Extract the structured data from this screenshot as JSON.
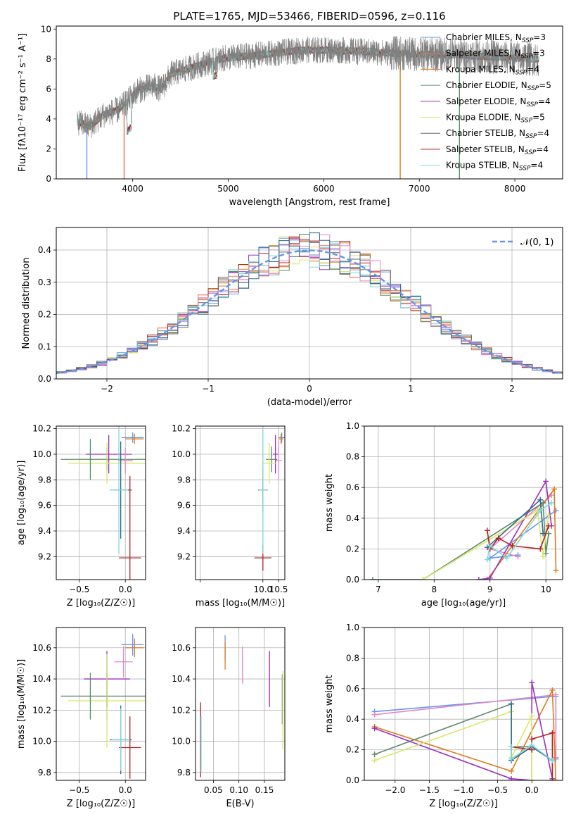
{
  "figure": {
    "title": "PLATE=1765, MJD=53466, FIBERID=0596, z=0.116"
  },
  "colors": {
    "palette": [
      "#6495ed",
      "#ee6a50",
      "#dd7a1f",
      "#5e8b6a",
      "#9b30c0",
      "#d8e86a",
      "#666666",
      "#b22222",
      "#7fd8d8",
      "#e487c8",
      "#2e6b8a",
      "#4a8c8a"
    ]
  },
  "legend_models": [
    {
      "label": "Chabrier MILES, N",
      "sub": "SSP",
      "suffix": "=3",
      "color": "#6495ed"
    },
    {
      "label": "Salpeter MILES, N",
      "sub": "SSP",
      "suffix": "=3",
      "color": "#ee6a50"
    },
    {
      "label": "Kroupa MILES, N",
      "sub": "SSP",
      "suffix": "=4",
      "color": "#dd7a1f"
    },
    {
      "label": "Chabrier ELODIE, N",
      "sub": "SSP",
      "suffix": "=5",
      "color": "#5e8b6a"
    },
    {
      "label": "Salpeter ELODIE, N",
      "sub": "SSP",
      "suffix": "=4",
      "color": "#9b30c0"
    },
    {
      "label": "Kroupa ELODIE, N",
      "sub": "SSP",
      "suffix": "=5",
      "color": "#d8e86a"
    },
    {
      "label": "Chabrier STELIB, N",
      "sub": "SSP",
      "suffix": "=4",
      "color": "#666666"
    },
    {
      "label": "Salpeter STELIB, N",
      "sub": "SSP",
      "suffix": "=4",
      "color": "#b22222"
    },
    {
      "label": "Kroupa STELIB, N",
      "sub": "SSP",
      "suffix": "=4",
      "color": "#7fd8d8"
    }
  ],
  "chart_data": [
    {
      "id": "spectrum",
      "type": "line",
      "xlabel": "wavelength [Angstrom, rest frame]",
      "ylabel": "Flux [fλ10⁻¹⁷ erg cm⁻² s⁻¹ A⁻¹]",
      "xlim": [
        3200,
        8500
      ],
      "ylim": [
        0,
        10.2
      ],
      "xticks": [
        4000,
        5000,
        6000,
        7000,
        8000
      ],
      "yticks": [
        0,
        2,
        4,
        6,
        8,
        10
      ],
      "grid": false,
      "legend_position": "right",
      "continuum": [
        [
          3420,
          3.8
        ],
        [
          3550,
          3.5
        ],
        [
          3700,
          4.3
        ],
        [
          3850,
          4.6
        ],
        [
          3950,
          5.2
        ],
        [
          4050,
          5.9
        ],
        [
          4200,
          6.2
        ],
        [
          4300,
          6.0
        ],
        [
          4400,
          7.0
        ],
        [
          4600,
          7.4
        ],
        [
          4800,
          7.8
        ],
        [
          5000,
          8.1
        ],
        [
          5200,
          8.2
        ],
        [
          5500,
          8.4
        ],
        [
          5800,
          8.6
        ],
        [
          6100,
          8.6
        ],
        [
          6400,
          8.5
        ],
        [
          6700,
          8.4
        ],
        [
          7000,
          8.3
        ],
        [
          7300,
          8.3
        ],
        [
          7600,
          8.2
        ],
        [
          7900,
          8.1
        ],
        [
          8250,
          8.0
        ]
      ],
      "noise_amplitude": 0.9,
      "model_dropouts": [
        [
          3520,
          0
        ],
        [
          3910,
          0
        ],
        [
          6800,
          0
        ],
        [
          7420,
          0
        ]
      ]
    },
    {
      "id": "residuals",
      "type": "step",
      "xlabel": "(data-model)/error",
      "ylabel": "Normed distribution",
      "xlim": [
        -2.5,
        2.5
      ],
      "ylim": [
        0,
        0.47
      ],
      "xticks": [
        -2,
        -1,
        0,
        1,
        2
      ],
      "xtick_labels": [
        "−2",
        "−1",
        "0",
        "1",
        "2"
      ],
      "yticks": [
        0.0,
        0.1,
        0.2,
        0.3,
        0.4
      ],
      "ytick_labels": [
        "0.0",
        "0.1",
        "0.2",
        "0.3",
        "0.4"
      ],
      "grid": true,
      "bin_width": 0.1,
      "reference_curve": {
        "label": "𝒩(0, 1)",
        "color": "#6495ed",
        "mean": 0,
        "sigma": 1
      },
      "legend_position": "top-right"
    },
    {
      "id": "age-vs-Z",
      "type": "errorbar",
      "xlabel": "Z [log₁₀(Z/Z☉)]",
      "ylabel": "age  [log₁₀(age/yr)]",
      "xlim": [
        -0.75,
        0.22
      ],
      "ylim": [
        9.02,
        10.22
      ],
      "xticks": [
        -0.5,
        0.0
      ],
      "xtick_labels": [
        "−0.5",
        "0.0"
      ],
      "yticks": [
        9.2,
        9.4,
        9.6,
        9.8,
        10.0,
        10.2
      ],
      "ytick_labels": [
        "9.2",
        "9.4",
        "9.6",
        "9.8",
        "10.0",
        "10.2"
      ],
      "grid": true,
      "points": [
        {
          "x": 0.08,
          "y": 10.13,
          "xerr": 0.12,
          "yerr": 0.04,
          "color": "#6495ed"
        },
        {
          "x": 0.1,
          "y": 10.12,
          "xerr": 0.1,
          "yerr": 0.04,
          "color": "#dd7a1f"
        },
        {
          "x": -0.2,
          "y": 9.96,
          "xerr": 0.5,
          "yerr": 0.09,
          "color": "#5e8b6a"
        },
        {
          "x": -0.18,
          "y": 10.0,
          "xerr": 0.25,
          "yerr": 0.15,
          "color": "#9b30c0"
        },
        {
          "x": -0.2,
          "y": 9.93,
          "xerr": 0.42,
          "yerr": 0.16,
          "color": "#d8e86a"
        },
        {
          "x": 0.0,
          "y": 9.95,
          "xerr": 0.08,
          "yerr": 0.1,
          "color": "#e487c8"
        },
        {
          "x": -0.05,
          "y": 9.72,
          "xerr": 0.12,
          "yerr": 0.38,
          "color": "#2e6b8a"
        },
        {
          "x": 0.05,
          "y": 9.19,
          "xerr": 0.12,
          "yerr": 0.64,
          "color": "#b22222"
        },
        {
          "x": -0.07,
          "y": 9.72,
          "xerr": 0.1,
          "yerr": 0.5,
          "color": "#7fd8d8"
        },
        {
          "x": -0.38,
          "y": 9.96,
          "xerr": 0.01,
          "yerr": 0.16,
          "color": "#5e8b6a"
        }
      ]
    },
    {
      "id": "age-vs-mass",
      "type": "errorbar",
      "xlabel": "mass [log₁₀(M/M☉)]",
      "ylabel": "",
      "xlim": [
        7.85,
        10.7
      ],
      "ylim": [
        9.02,
        10.22
      ],
      "xticks": [
        8.0,
        10.0,
        10.5
      ],
      "xtick_labels": [
        "",
        "10.0",
        "10.5"
      ],
      "yticks": [
        9.2,
        9.4,
        9.6,
        9.8,
        10.0,
        10.2
      ],
      "ytick_labels": [
        "9.2",
        "9.4",
        "9.6",
        "9.8",
        "10.0",
        "10.2"
      ],
      "grid": true,
      "points": [
        {
          "x": 10.6,
          "y": 10.13,
          "xerr": 0.1,
          "yerr": 0.04,
          "color": "#6495ed"
        },
        {
          "x": 10.58,
          "y": 10.12,
          "xerr": 0.08,
          "yerr": 0.04,
          "color": "#dd7a1f"
        },
        {
          "x": 10.28,
          "y": 9.96,
          "xerr": 0.18,
          "yerr": 0.1,
          "color": "#5e8b6a"
        },
        {
          "x": 10.4,
          "y": 10.0,
          "xerr": 0.08,
          "yerr": 0.15,
          "color": "#9b30c0"
        },
        {
          "x": 10.2,
          "y": 9.93,
          "xerr": 0.2,
          "yerr": 0.16,
          "color": "#d8e86a"
        },
        {
          "x": 10.5,
          "y": 9.95,
          "xerr": 0.1,
          "yerr": 0.15,
          "color": "#e487c8"
        },
        {
          "x": 10.0,
          "y": 9.72,
          "xerr": 0.15,
          "yerr": 0.17,
          "color": "#666666"
        },
        {
          "x": 10.0,
          "y": 9.19,
          "xerr": 0.27,
          "yerr": 0.1,
          "color": "#b22222"
        },
        {
          "x": 10.0,
          "y": 9.72,
          "xerr": 0.12,
          "yerr": 0.5,
          "color": "#7fd8d8"
        }
      ]
    },
    {
      "id": "weight-vs-age",
      "type": "line",
      "xlabel": "age  [log₁₀(age/yr)]",
      "ylabel": "mass weight",
      "xlim": [
        6.75,
        10.3
      ],
      "ylim": [
        0,
        1.0
      ],
      "xticks": [
        7,
        8,
        9,
        10
      ],
      "xtick_labels": [
        "7",
        "8",
        "9",
        "10"
      ],
      "yticks": [
        0.0,
        0.2,
        0.4,
        0.6,
        0.8,
        1.0
      ],
      "ytick_labels": [
        "0.0",
        "0.2",
        "0.4",
        "0.6",
        "0.8",
        "1.0"
      ],
      "grid": true,
      "series": [
        {
          "color": "#6495ed",
          "x": [
            10.18,
            9.0,
            9.5
          ],
          "y": [
            0.45,
            0.14,
            0.16
          ]
        },
        {
          "color": "#e487c8",
          "x": [
            10.1,
            9.0,
            9.5
          ],
          "y": [
            0.55,
            0.2,
            0.15
          ]
        },
        {
          "color": "#dd7a1f",
          "x": [
            10.18,
            10.15,
            8.95
          ],
          "y": [
            0.06,
            0.59,
            0.0
          ]
        },
        {
          "color": "#5e8b6a",
          "x": [
            6.9,
            7.8,
            9.95,
            10.0,
            10.05
          ],
          "y": [
            0.0,
            0.0,
            0.5,
            0.17,
            0.3
          ]
        },
        {
          "color": "#9b30c0",
          "x": [
            8.8,
            9.0,
            10.0,
            10.1
          ],
          "y": [
            0.0,
            0.01,
            0.64,
            0.35
          ]
        },
        {
          "color": "#d8e86a",
          "x": [
            7.8,
            9.85,
            9.95,
            10.05
          ],
          "y": [
            0.0,
            0.45,
            0.15,
            0.42
          ]
        },
        {
          "color": "#2e6b8a",
          "x": [
            8.95,
            9.9,
            9.95
          ],
          "y": [
            0.21,
            0.52,
            0.3
          ]
        },
        {
          "color": "#b22222",
          "x": [
            8.95,
            9.0,
            9.15,
            9.4,
            9.9,
            10.05
          ],
          "y": [
            0.32,
            0.2,
            0.27,
            0.22,
            0.2,
            0.35
          ]
        },
        {
          "color": "#7fd8d8",
          "x": [
            8.95,
            9.0,
            9.3,
            9.9,
            10.1
          ],
          "y": [
            0.13,
            0.22,
            0.14,
            0.45,
            0.5
          ]
        }
      ]
    },
    {
      "id": "mass-vs-Z",
      "type": "errorbar",
      "xlabel": "Z [log₁₀(Z/Z☉)]",
      "ylabel": "mass [log₁₀(M/M☉)]",
      "xlim": [
        -0.75,
        0.22
      ],
      "ylim": [
        9.75,
        10.73
      ],
      "xticks": [
        -0.5,
        0.0
      ],
      "xtick_labels": [
        "−0.5",
        "0.0"
      ],
      "yticks": [
        9.8,
        10.0,
        10.2,
        10.4,
        10.6
      ],
      "ytick_labels": [
        "9.8",
        "10.0",
        "10.2",
        "10.4",
        "10.6"
      ],
      "grid": true,
      "points": [
        {
          "x": 0.08,
          "y": 10.62,
          "xerr": 0.12,
          "yerr": 0.07,
          "color": "#6495ed"
        },
        {
          "x": 0.1,
          "y": 10.6,
          "xerr": 0.1,
          "yerr": 0.06,
          "color": "#dd7a1f"
        },
        {
          "x": -0.2,
          "y": 10.29,
          "xerr": 0.5,
          "yerr": 0.15,
          "color": "#5e8b6a"
        },
        {
          "x": -0.2,
          "y": 10.4,
          "xerr": 0.25,
          "yerr": 0.18,
          "color": "#9b30c0"
        },
        {
          "x": -0.2,
          "y": 10.26,
          "xerr": 0.42,
          "yerr": 0.3,
          "color": "#d8e86a"
        },
        {
          "x": -0.02,
          "y": 10.51,
          "xerr": 0.1,
          "yerr": 0.1,
          "color": "#e487c8"
        },
        {
          "x": -0.05,
          "y": 10.01,
          "xerr": 0.12,
          "yerr": 0.22,
          "color": "#2e6b8a"
        },
        {
          "x": 0.05,
          "y": 9.96,
          "xerr": 0.12,
          "yerr": 0.2,
          "color": "#b22222"
        },
        {
          "x": -0.05,
          "y": 10.01,
          "xerr": 0.1,
          "yerr": 0.2,
          "color": "#7fd8d8"
        },
        {
          "x": -0.38,
          "y": 10.29,
          "xerr": 0.01,
          "yerr": 0.15,
          "color": "#5e8b6a"
        }
      ]
    },
    {
      "id": "mass-vs-ebv",
      "type": "errorbar",
      "xlabel": "E(B-V)",
      "ylabel": "",
      "xlim": [
        0.015,
        0.19
      ],
      "ylim": [
        9.75,
        10.73
      ],
      "xticks": [
        0.05,
        0.1,
        0.15
      ],
      "xtick_labels": [
        "0.05",
        "0.10",
        "0.15"
      ],
      "yticks": [
        9.8,
        10.0,
        10.2,
        10.4,
        10.6
      ],
      "ytick_labels": [
        "9.8",
        "10.0",
        "10.2",
        "10.4",
        "10.6"
      ],
      "grid": true,
      "points": [
        {
          "x": 0.025,
          "y": 10.0,
          "xerr": 0.0,
          "yerr": 0.17,
          "color": "#2e6b8a"
        },
        {
          "x": 0.025,
          "y": 10.01,
          "xerr": 0.0,
          "yerr": 0.24,
          "color": "#b22222"
        },
        {
          "x": 0.026,
          "y": 9.98,
          "xerr": 0.0,
          "yerr": 0.18,
          "color": "#7fd8d8"
        },
        {
          "x": 0.073,
          "y": 10.6,
          "xerr": 0.0,
          "yerr": 0.08,
          "color": "#6495ed"
        },
        {
          "x": 0.073,
          "y": 10.55,
          "xerr": 0.0,
          "yerr": 0.09,
          "color": "#dd7a1f"
        },
        {
          "x": 0.107,
          "y": 10.49,
          "xerr": 0.0,
          "yerr": 0.12,
          "color": "#e487c8"
        },
        {
          "x": 0.16,
          "y": 10.4,
          "xerr": 0.0,
          "yerr": 0.18,
          "color": "#9b30c0"
        },
        {
          "x": 0.185,
          "y": 10.27,
          "xerr": 0.0,
          "yerr": 0.16,
          "color": "#5e8b6a"
        },
        {
          "x": 0.186,
          "y": 10.2,
          "xerr": 0.0,
          "yerr": 0.25,
          "color": "#d8e86a"
        }
      ]
    },
    {
      "id": "weight-vs-Z",
      "type": "line",
      "xlabel": "Z [log₁₀(Z/Z☉)]",
      "ylabel": "mass weight",
      "xlim": [
        -2.45,
        0.45
      ],
      "ylim": [
        0,
        1.0
      ],
      "xticks": [
        -2.0,
        -1.5,
        -1.0,
        -0.5,
        0.0
      ],
      "xtick_labels": [
        "−2.0",
        "−1.5",
        "−1.0",
        "−0.5",
        "0.0"
      ],
      "yticks": [
        0.0,
        0.2,
        0.4,
        0.6,
        0.8,
        1.0
      ],
      "ytick_labels": [
        "0.0",
        "0.2",
        "0.4",
        "0.6",
        "0.8",
        "1.0"
      ],
      "grid": true,
      "series": [
        {
          "color": "#6495ed",
          "x": [
            -2.3,
            0.35,
            0.35
          ],
          "y": [
            0.45,
            0.55,
            0.14
          ]
        },
        {
          "color": "#e487c8",
          "x": [
            -2.3,
            0.35,
            0.35
          ],
          "y": [
            0.43,
            0.56,
            0.15
          ]
        },
        {
          "color": "#dd7a1f",
          "x": [
            -2.3,
            -0.3,
            0.3,
            0.35
          ],
          "y": [
            0.35,
            0.06,
            0.59,
            0.0
          ]
        },
        {
          "color": "#5e8b6a",
          "x": [
            -2.3,
            -0.3,
            -0.3,
            0.0,
            0.3
          ],
          "y": [
            0.17,
            0.5,
            0.22,
            0.22,
            0.13
          ]
        },
        {
          "color": "#9b30c0",
          "x": [
            -2.3,
            -0.3,
            0.0,
            0.0,
            0.3
          ],
          "y": [
            0.34,
            0.01,
            0.0,
            0.64,
            0.01
          ]
        },
        {
          "color": "#d8e86a",
          "x": [
            -2.3,
            -0.3,
            -0.3,
            0.0,
            0.0
          ],
          "y": [
            0.13,
            0.45,
            0.15,
            0.42,
            0.0
          ]
        },
        {
          "color": "#2e6b8a",
          "x": [
            -0.3,
            -0.3,
            0.0,
            0.3
          ],
          "y": [
            0.5,
            0.13,
            0.22,
            0.13
          ]
        },
        {
          "color": "#b22222",
          "x": [
            -0.3,
            0.0,
            0.0,
            0.3,
            0.3
          ],
          "y": [
            0.22,
            0.2,
            0.27,
            0.31,
            0.0
          ]
        },
        {
          "color": "#7fd8d8",
          "x": [
            -0.3,
            -0.3,
            0.0,
            0.3
          ],
          "y": [
            0.22,
            0.14,
            0.23,
            0.13
          ]
        }
      ]
    }
  ]
}
